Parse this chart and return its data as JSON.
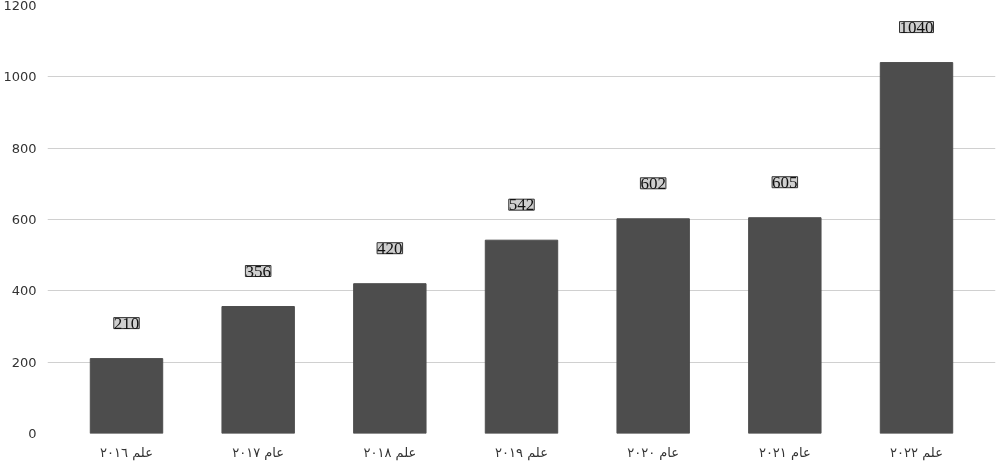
{
  "chart_data": {
    "type": "bar",
    "categories": [
      "علم ٢٠١٦",
      "عام ٢٠١٧",
      "علم ٢٠١٨",
      "علم ٢٠١٩",
      "عام ٢٠٢٠",
      "عام ٢٠٢١",
      "علم ٢٠٢٢"
    ],
    "values": [
      210,
      356,
      420,
      542,
      602,
      605,
      1040
    ],
    "color": "#4d4d4d",
    "ylim": [
      0,
      1200
    ],
    "yticks": [
      0,
      200,
      400,
      600,
      800,
      1000,
      1200
    ],
    "grid": "y",
    "data_labels": true
  }
}
